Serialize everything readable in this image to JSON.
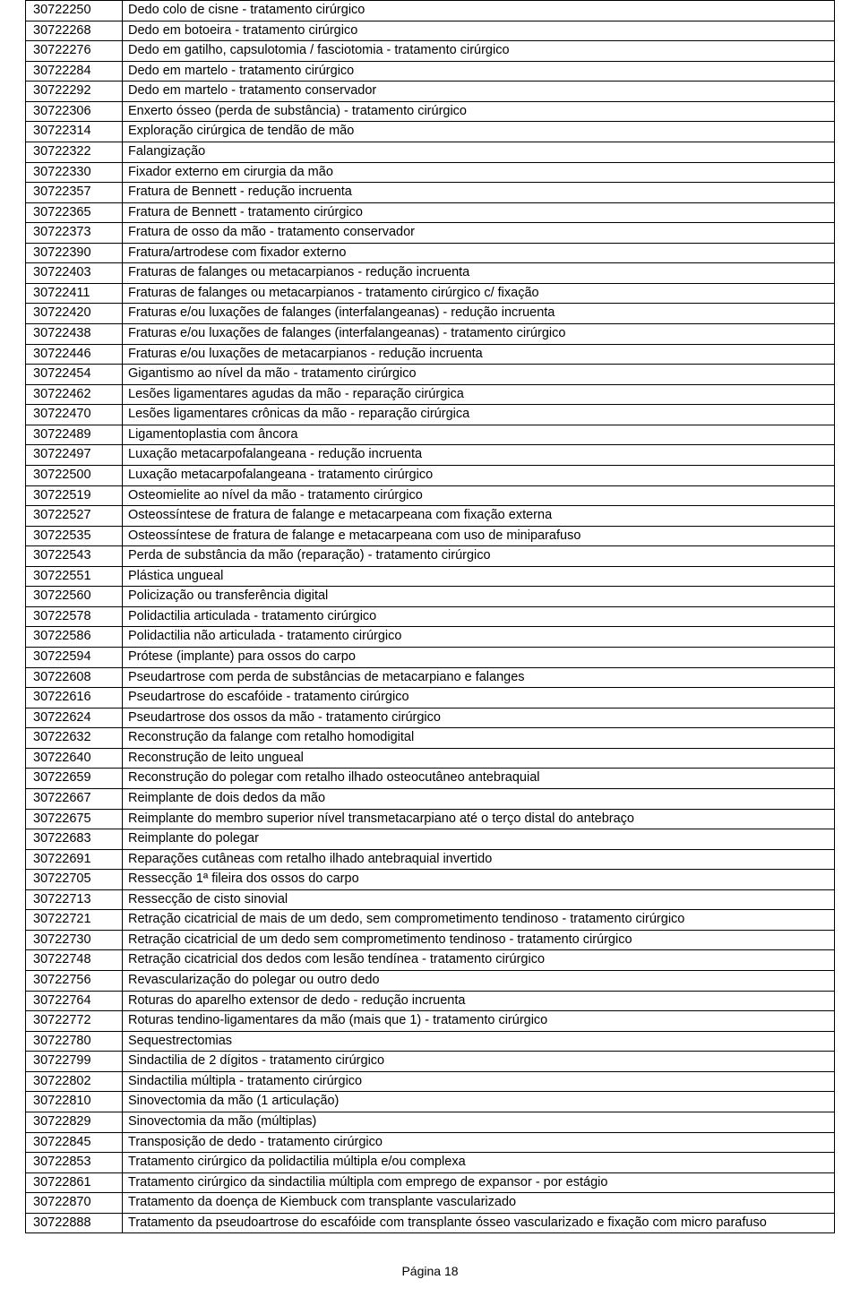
{
  "footer": "Página 18",
  "table": {
    "col_widths": {
      "code": 108,
      "desc": 796
    },
    "border_color": "#000000",
    "background_color": "#ffffff",
    "text_color": "#000000",
    "font_size": 14.5,
    "rows": [
      {
        "code": "30722250",
        "desc": "Dedo colo de cisne - tratamento cirúrgico"
      },
      {
        "code": "30722268",
        "desc": "Dedo em botoeira - tratamento cirúrgico"
      },
      {
        "code": "30722276",
        "desc": "Dedo em gatilho, capsulotomia / fasciotomia - tratamento cirúrgico"
      },
      {
        "code": "30722284",
        "desc": "Dedo em martelo - tratamento cirúrgico"
      },
      {
        "code": "30722292",
        "desc": "Dedo em martelo - tratamento conservador"
      },
      {
        "code": "30722306",
        "desc": "Enxerto ósseo (perda de substância) - tratamento cirúrgico"
      },
      {
        "code": "30722314",
        "desc": "Exploração cirúrgica de tendão de mão"
      },
      {
        "code": "30722322",
        "desc": "Falangização"
      },
      {
        "code": "30722330",
        "desc": "Fixador externo em cirurgia da mão"
      },
      {
        "code": "30722357",
        "desc": "Fratura de Bennett - redução incruenta"
      },
      {
        "code": "30722365",
        "desc": "Fratura de Bennett - tratamento cirúrgico"
      },
      {
        "code": "30722373",
        "desc": "Fratura de osso da mão - tratamento conservador"
      },
      {
        "code": "30722390",
        "desc": "Fratura/artrodese com fixador externo"
      },
      {
        "code": "30722403",
        "desc": "Fraturas de falanges ou metacarpianos - redução incruenta"
      },
      {
        "code": "30722411",
        "desc": "Fraturas de falanges ou metacarpianos - tratamento cirúrgico c/ fixação"
      },
      {
        "code": "30722420",
        "desc": "Fraturas e/ou luxações de falanges (interfalangeanas) - redução incruenta"
      },
      {
        "code": "30722438",
        "desc": "Fraturas e/ou luxações de falanges (interfalangeanas) - tratamento cirúrgico"
      },
      {
        "code": "30722446",
        "desc": "Fraturas e/ou luxações de metacarpianos - redução incruenta"
      },
      {
        "code": "30722454",
        "desc": "Gigantismo ao nível da mão - tratamento cirúrgico"
      },
      {
        "code": "30722462",
        "desc": "Lesões ligamentares agudas da mão - reparação cirúrgica"
      },
      {
        "code": "30722470",
        "desc": "Lesões ligamentares crônicas da mão - reparação cirúrgica"
      },
      {
        "code": "30722489",
        "desc": "Ligamentoplastia com âncora"
      },
      {
        "code": "30722497",
        "desc": "Luxação metacarpofalangeana - redução incruenta"
      },
      {
        "code": "30722500",
        "desc": "Luxação metacarpofalangeana - tratamento cirúrgico"
      },
      {
        "code": "30722519",
        "desc": "Osteomielite ao nível da mão - tratamento cirúrgico"
      },
      {
        "code": "30722527",
        "desc": "Osteossíntese de fratura de falange e metacarpeana com fixação externa"
      },
      {
        "code": "30722535",
        "desc": "Osteossíntese de fratura de falange e metacarpeana com uso de miniparafuso"
      },
      {
        "code": "30722543",
        "desc": "Perda de substância da mão (reparação) - tratamento cirúrgico"
      },
      {
        "code": "30722551",
        "desc": "Plástica ungueal"
      },
      {
        "code": "30722560",
        "desc": "Policização ou transferência digital"
      },
      {
        "code": "30722578",
        "desc": "Polidactilia articulada - tratamento cirúrgico"
      },
      {
        "code": "30722586",
        "desc": "Polidactilia não articulada - tratamento cirúrgico"
      },
      {
        "code": "30722594",
        "desc": "Prótese (implante) para ossos do carpo"
      },
      {
        "code": "30722608",
        "desc": "Pseudartrose com perda de substâncias de metacarpiano e falanges"
      },
      {
        "code": "30722616",
        "desc": "Pseudartrose do escafóide - tratamento cirúrgico"
      },
      {
        "code": "30722624",
        "desc": "Pseudartrose dos ossos da mão - tratamento cirúrgico"
      },
      {
        "code": "30722632",
        "desc": "Reconstrução da falange com retalho homodigital"
      },
      {
        "code": "30722640",
        "desc": "Reconstrução de leito ungueal"
      },
      {
        "code": "30722659",
        "desc": "Reconstrução do polegar com retalho ilhado osteocutâneo antebraquial"
      },
      {
        "code": "30722667",
        "desc": "Reimplante de dois dedos da mão"
      },
      {
        "code": "30722675",
        "desc": "Reimplante do membro superior nível transmetacarpiano até o terço distal do antebraço"
      },
      {
        "code": "30722683",
        "desc": "Reimplante do polegar"
      },
      {
        "code": "30722691",
        "desc": "Reparações cutâneas com retalho ilhado antebraquial invertido"
      },
      {
        "code": "30722705",
        "desc": "Ressecção 1ª fileira dos ossos do carpo"
      },
      {
        "code": "30722713",
        "desc": "Ressecção de cisto sinovial"
      },
      {
        "code": "30722721",
        "desc": "Retração cicatricial de mais de um dedo, sem comprometimento tendinoso - tratamento cirúrgico"
      },
      {
        "code": "30722730",
        "desc": "Retração cicatricial de um dedo sem comprometimento tendinoso - tratamento cirúrgico"
      },
      {
        "code": "30722748",
        "desc": "Retração cicatricial dos dedos com lesão tendínea - tratamento cirúrgico"
      },
      {
        "code": "30722756",
        "desc": "Revascularização  do  polegar  ou  outro  dedo"
      },
      {
        "code": "30722764",
        "desc": "Roturas do aparelho extensor de dedo - redução incruenta"
      },
      {
        "code": "30722772",
        "desc": "Roturas tendino-ligamentares da mão (mais que 1) - tratamento cirúrgico"
      },
      {
        "code": "30722780",
        "desc": "Sequestrectomias"
      },
      {
        "code": "30722799",
        "desc": "Sindactilia de 2 dígitos - tratamento cirúrgico"
      },
      {
        "code": "30722802",
        "desc": "Sindactilia múltipla - tratamento cirúrgico"
      },
      {
        "code": "30722810",
        "desc": "Sinovectomia da mão (1 articulação)"
      },
      {
        "code": "30722829",
        "desc": "Sinovectomia da mão (múltiplas)"
      },
      {
        "code": "30722845",
        "desc": "Transposição de dedo - tratamento cirúrgico"
      },
      {
        "code": "30722853",
        "desc": "Tratamento cirúrgico da polidactilia múltipla e/ou complexa"
      },
      {
        "code": "30722861",
        "desc": "Tratamento cirúrgico da sindactilia múltipla com emprego de expansor - por estágio"
      },
      {
        "code": "30722870",
        "desc": "Tratamento da doença de Kiembuck com transplante vascularizado"
      },
      {
        "code": "30722888",
        "desc": "Tratamento da pseudoartrose do escafóide com transplante ósseo vascularizado e fixação com micro parafuso",
        "justify": true
      }
    ]
  }
}
